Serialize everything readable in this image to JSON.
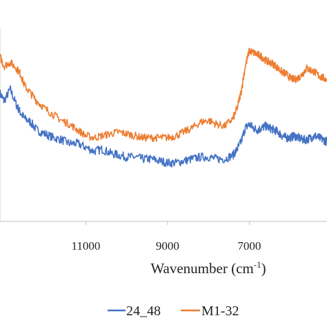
{
  "chart_data": {
    "type": "line",
    "xlabel": "Wavenumber",
    "xlabel_unit_base": "cm",
    "xlabel_unit_exp": "-1",
    "x_reversed": true,
    "xlim": [
      13100,
      5100
    ],
    "ylim": [
      0,
      1
    ],
    "xticks": [
      11000,
      9000,
      7000
    ],
    "xtick_labels": [
      "11000",
      "9000",
      "7000"
    ],
    "grid": false,
    "legend_position": "bottom",
    "series": [
      {
        "name": "24_48",
        "color": "#4472C4",
        "x": [
          13100,
          13000,
          12850,
          12700,
          12600,
          12500,
          12350,
          12200,
          12000,
          11800,
          11600,
          11400,
          11200,
          11000,
          10800,
          10600,
          10400,
          10200,
          10000,
          9800,
          9600,
          9400,
          9200,
          9000,
          8800,
          8600,
          8400,
          8200,
          8000,
          7800,
          7600,
          7400,
          7300,
          7200,
          7100,
          7000,
          6900,
          6800,
          6700,
          6600,
          6500,
          6400,
          6300,
          6200,
          6100,
          6000,
          5900,
          5800,
          5700,
          5600,
          5500,
          5400,
          5300,
          5200,
          5100
        ],
        "y": [
          0.66,
          0.62,
          0.68,
          0.6,
          0.56,
          0.53,
          0.51,
          0.47,
          0.45,
          0.43,
          0.42,
          0.4,
          0.4,
          0.38,
          0.36,
          0.37,
          0.35,
          0.34,
          0.33,
          0.33,
          0.32,
          0.32,
          0.31,
          0.3,
          0.3,
          0.31,
          0.32,
          0.33,
          0.33,
          0.32,
          0.32,
          0.34,
          0.37,
          0.41,
          0.48,
          0.5,
          0.48,
          0.47,
          0.48,
          0.49,
          0.48,
          0.47,
          0.46,
          0.44,
          0.43,
          0.43,
          0.44,
          0.43,
          0.42,
          0.42,
          0.43,
          0.44,
          0.43,
          0.42,
          0.41
        ]
      },
      {
        "name": "M1-32",
        "color": "#ED7D31",
        "x": [
          13100,
          13000,
          12850,
          12700,
          12600,
          12500,
          12350,
          12200,
          12000,
          11800,
          11600,
          11400,
          11200,
          11000,
          10800,
          10600,
          10400,
          10200,
          10000,
          9800,
          9600,
          9400,
          9200,
          9000,
          8800,
          8600,
          8400,
          8200,
          8000,
          7800,
          7600,
          7400,
          7300,
          7200,
          7100,
          7000,
          6900,
          6800,
          6700,
          6600,
          6500,
          6400,
          6300,
          6200,
          6100,
          6000,
          5900,
          5800,
          5700,
          5600,
          5500,
          5400,
          5300,
          5200,
          5100
        ],
        "y": [
          0.85,
          0.8,
          0.82,
          0.79,
          0.76,
          0.7,
          0.66,
          0.62,
          0.58,
          0.55,
          0.52,
          0.5,
          0.47,
          0.44,
          0.43,
          0.44,
          0.45,
          0.46,
          0.45,
          0.44,
          0.43,
          0.43,
          0.43,
          0.43,
          0.44,
          0.46,
          0.48,
          0.51,
          0.52,
          0.5,
          0.49,
          0.53,
          0.58,
          0.67,
          0.8,
          0.88,
          0.87,
          0.86,
          0.85,
          0.83,
          0.82,
          0.81,
          0.79,
          0.77,
          0.76,
          0.74,
          0.73,
          0.74,
          0.76,
          0.79,
          0.78,
          0.77,
          0.75,
          0.74,
          0.73
        ]
      }
    ]
  }
}
